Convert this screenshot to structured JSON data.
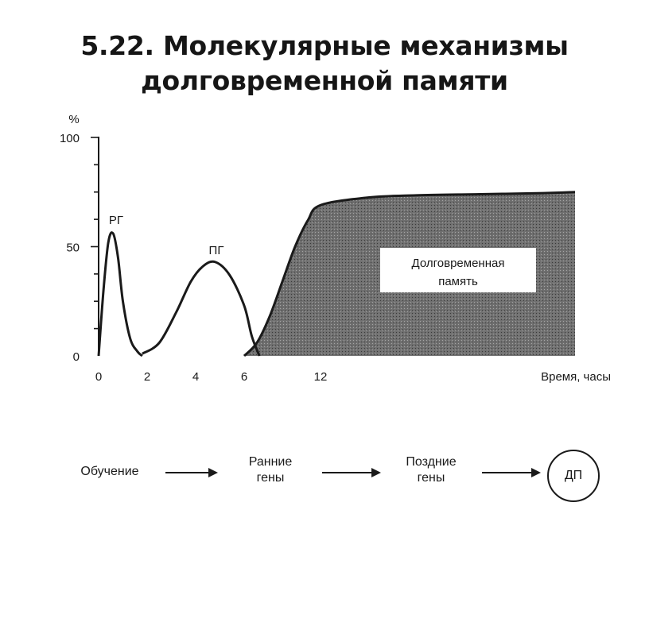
{
  "title": {
    "line1": "5.22. Молекулярные механизмы",
    "line2": "долговременной памяти"
  },
  "chart_data": {
    "type": "line",
    "y_unit": "%",
    "xlabel": "Время, часы",
    "ylim": [
      0,
      100
    ],
    "y_ticks": [
      "0",
      "50",
      "100"
    ],
    "x_ticks": [
      "0",
      "2",
      "4",
      "6",
      "12"
    ],
    "series": [
      {
        "name": "РГ",
        "x": [
          0,
          0.2,
          0.4,
          0.6,
          0.8,
          1.0,
          1.3,
          1.6,
          1.8
        ],
        "y": [
          0,
          30,
          52,
          56,
          45,
          25,
          8,
          2,
          0
        ]
      },
      {
        "name": "ПГ",
        "x": [
          1.8,
          2.5,
          3.2,
          3.8,
          4.3,
          4.8,
          5.4,
          6.0,
          6.6,
          7.2
        ],
        "y": [
          1,
          6,
          20,
          34,
          41,
          43,
          37,
          23,
          9,
          0
        ]
      },
      {
        "name": "Долговременная память",
        "fill": "shaded",
        "x": [
          6.0,
          7.0,
          8.0,
          9.0,
          10.0,
          11.0,
          12.0,
          13.5,
          15.0,
          17.0,
          19.0,
          20.0
        ],
        "y": [
          0,
          6,
          18,
          34,
          50,
          62,
          69,
          72.5,
          73.5,
          74,
          74.5,
          75
        ]
      }
    ],
    "annotations": {
      "rg": "РГ",
      "pg": "ПГ",
      "ltm_line1": "Долговременная",
      "ltm_line2": "память"
    }
  },
  "flow": {
    "learning": "Обучение",
    "early_line1": "Ранние",
    "early_line2": "гены",
    "late_line1": "Поздние",
    "late_line2": "гены",
    "result": "ДП"
  },
  "colors": {
    "ink": "#1a1a1a",
    "shade": "#6e6e6e"
  }
}
